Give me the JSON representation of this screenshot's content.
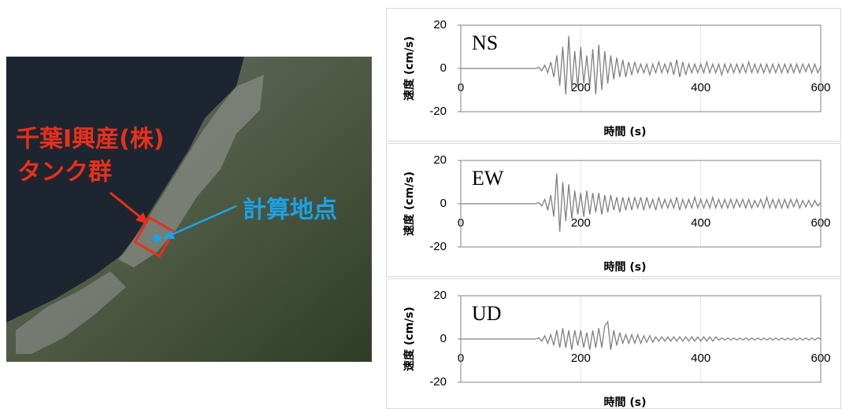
{
  "map": {
    "labels": [
      "千葉I興産(株)",
      "タンク群",
      "計算地点"
    ]
  },
  "chart_data": [
    {
      "type": "line",
      "x_label": "時間 (s)",
      "y_label": "速度 (cm/s)",
      "xlim": [
        0,
        600
      ],
      "xticks": [
        0,
        200,
        400,
        600
      ],
      "ylim": [
        -20,
        20
      ],
      "yticks": [
        -20,
        0,
        20
      ],
      "grid": true,
      "x": [
        0,
        5,
        10,
        15,
        20,
        25,
        30,
        35,
        40,
        45,
        50,
        55,
        60,
        65,
        70,
        75,
        80,
        85,
        90,
        95,
        100,
        105,
        110,
        115,
        120,
        125,
        130,
        135,
        140,
        145,
        150,
        155,
        160,
        165,
        170,
        175,
        180,
        185,
        190,
        195,
        200,
        205,
        210,
        215,
        220,
        225,
        230,
        235,
        240,
        245,
        250,
        255,
        260,
        265,
        270,
        275,
        280,
        285,
        290,
        295,
        300,
        305,
        310,
        315,
        320,
        325,
        330,
        335,
        340,
        345,
        350,
        355,
        360,
        365,
        370,
        375,
        380,
        385,
        390,
        395,
        400,
        405,
        410,
        415,
        420,
        425,
        430,
        435,
        440,
        445,
        450,
        455,
        460,
        465,
        470,
        475,
        480,
        485,
        490,
        495,
        500,
        505,
        510,
        515,
        520,
        525,
        530,
        535,
        540,
        545,
        550,
        555,
        560,
        565,
        570,
        575,
        580,
        585,
        590,
        595,
        600
      ],
      "series": [
        {
          "name": "NS",
          "color": "#808080",
          "values": [
            0,
            0,
            0,
            0,
            0,
            0,
            0,
            0,
            0,
            0,
            0,
            0,
            0,
            0,
            0,
            0,
            0,
            0,
            0,
            0,
            0,
            0,
            0,
            0,
            0,
            0,
            0.5,
            -1,
            1.5,
            -2,
            3,
            -4,
            6,
            -8,
            10,
            -12,
            15,
            -10,
            8,
            -9,
            10,
            -7,
            6,
            -8,
            9,
            -12,
            11,
            -10,
            8,
            -7,
            6,
            -5,
            5,
            -4,
            4,
            -4,
            3,
            -3,
            3,
            -2,
            2,
            -2,
            2,
            -3,
            2,
            -2,
            3,
            -2,
            2,
            -2,
            3,
            -3,
            4,
            -4,
            3,
            -3,
            2,
            -2,
            2,
            -2,
            2,
            -2,
            3,
            -2,
            2,
            -2,
            2,
            -3,
            2,
            -2,
            2,
            -2,
            2,
            -2,
            2,
            -2,
            3,
            -2,
            2,
            -2,
            2,
            -2,
            2,
            -2,
            2,
            -2,
            2,
            -2,
            2,
            -2,
            2,
            -2,
            2,
            -2,
            2,
            -1.5,
            2,
            -2,
            2,
            -2,
            1
          ]
        }
      ]
    },
    {
      "type": "line",
      "x_label": "時間 (s)",
      "y_label": "速度 (cm/s)",
      "xlim": [
        0,
        600
      ],
      "xticks": [
        0,
        200,
        400,
        600
      ],
      "ylim": [
        -20,
        20
      ],
      "yticks": [
        -20,
        0,
        20
      ],
      "grid": true,
      "x": [
        0,
        5,
        10,
        15,
        20,
        25,
        30,
        35,
        40,
        45,
        50,
        55,
        60,
        65,
        70,
        75,
        80,
        85,
        90,
        95,
        100,
        105,
        110,
        115,
        120,
        125,
        130,
        135,
        140,
        145,
        150,
        155,
        160,
        165,
        170,
        175,
        180,
        185,
        190,
        195,
        200,
        205,
        210,
        215,
        220,
        225,
        230,
        235,
        240,
        245,
        250,
        255,
        260,
        265,
        270,
        275,
        280,
        285,
        290,
        295,
        300,
        305,
        310,
        315,
        320,
        325,
        330,
        335,
        340,
        345,
        350,
        355,
        360,
        365,
        370,
        375,
        380,
        385,
        390,
        395,
        400,
        405,
        410,
        415,
        420,
        425,
        430,
        435,
        440,
        445,
        450,
        455,
        460,
        465,
        470,
        475,
        480,
        485,
        490,
        495,
        500,
        505,
        510,
        515,
        520,
        525,
        530,
        535,
        540,
        545,
        550,
        555,
        560,
        565,
        570,
        575,
        580,
        585,
        590,
        595,
        600
      ],
      "series": [
        {
          "name": "EW",
          "color": "#808080",
          "values": [
            0,
            0,
            0,
            0,
            0,
            0,
            0,
            0,
            0,
            0,
            0,
            0,
            0,
            0,
            0,
            0,
            0,
            0,
            0,
            0,
            0,
            0,
            0,
            0,
            0,
            0,
            0.5,
            -1,
            2,
            -3,
            4,
            -6,
            14,
            -13,
            10,
            -8,
            9,
            -7,
            6,
            -5,
            5,
            -6,
            6,
            -5,
            5,
            -4,
            5,
            -5,
            4,
            -4,
            4,
            -3,
            3,
            -4,
            3,
            -3,
            3,
            -3,
            3,
            -2,
            3,
            -3,
            3,
            -2,
            2,
            -3,
            3,
            -2,
            2,
            -2,
            2,
            -2,
            3,
            -3,
            2,
            -2,
            2,
            -2,
            3,
            -2,
            2,
            -2,
            2,
            -2,
            3,
            -2,
            2,
            -2,
            2,
            -2,
            2,
            -2,
            2,
            -1.5,
            2,
            -2,
            2,
            -2,
            1.5,
            -1.5,
            2,
            -2,
            3,
            -2,
            2,
            -2,
            2,
            -2,
            2,
            -2,
            2,
            -1.5,
            2,
            -2,
            1.5,
            -1.5,
            1.5,
            -1.5,
            1.5,
            -1,
            0.5
          ]
        }
      ]
    },
    {
      "type": "line",
      "x_label": "時間 (s)",
      "y_label": "速度 (cm/s)",
      "xlim": [
        0,
        600
      ],
      "xticks": [
        0,
        200,
        400,
        600
      ],
      "ylim": [
        -20,
        20
      ],
      "yticks": [
        -20,
        0,
        20
      ],
      "grid": true,
      "x": [
        0,
        5,
        10,
        15,
        20,
        25,
        30,
        35,
        40,
        45,
        50,
        55,
        60,
        65,
        70,
        75,
        80,
        85,
        90,
        95,
        100,
        105,
        110,
        115,
        120,
        125,
        130,
        135,
        140,
        145,
        150,
        155,
        160,
        165,
        170,
        175,
        180,
        185,
        190,
        195,
        200,
        205,
        210,
        215,
        220,
        225,
        230,
        235,
        240,
        245,
        250,
        255,
        260,
        265,
        270,
        275,
        280,
        285,
        290,
        295,
        300,
        305,
        310,
        315,
        320,
        325,
        330,
        335,
        340,
        345,
        350,
        355,
        360,
        365,
        370,
        375,
        380,
        385,
        390,
        395,
        400,
        405,
        410,
        415,
        420,
        425,
        430,
        435,
        440,
        445,
        450,
        455,
        460,
        465,
        470,
        475,
        480,
        485,
        490,
        495,
        500,
        505,
        510,
        515,
        520,
        525,
        530,
        535,
        540,
        545,
        550,
        555,
        560,
        565,
        570,
        575,
        580,
        585,
        590,
        595,
        600
      ],
      "series": [
        {
          "name": "UD",
          "color": "#808080",
          "values": [
            0,
            0,
            0,
            0,
            0,
            0,
            0,
            0,
            0,
            0,
            0,
            0,
            0,
            0,
            0,
            0,
            0,
            0,
            0,
            0,
            0,
            0,
            0,
            0,
            0,
            0,
            0.5,
            -1,
            1.5,
            -2,
            2,
            -3,
            4,
            -4,
            5,
            -4,
            4,
            -5,
            4,
            -3,
            4,
            -4,
            3,
            -5,
            4,
            -4,
            5,
            -4,
            6,
            8,
            -5,
            4,
            -3,
            3,
            -2,
            2,
            -2,
            2,
            -2,
            2,
            -2,
            1.5,
            -1.5,
            1.5,
            -1.5,
            1,
            -1,
            1,
            -1,
            1,
            -1,
            1,
            -1,
            1,
            -1,
            1,
            -1,
            1,
            -1,
            1,
            -1,
            1,
            -1,
            1,
            -1,
            1,
            -0.5,
            0.5,
            -0.5,
            0.5,
            -0.5,
            0.5,
            -0.5,
            0.5,
            -0.5,
            0.5,
            -0.5,
            0.5,
            -0.5,
            0.5,
            -0.5,
            0.5,
            -0.5,
            0.5,
            -0.5,
            0.5,
            -0.5,
            0.5,
            -0.5,
            0.5,
            -0.5,
            0.5,
            -0.5,
            0.5,
            -0.5,
            0.5,
            -0.5,
            0.5,
            -0.5,
            0.5,
            0
          ]
        }
      ]
    }
  ]
}
